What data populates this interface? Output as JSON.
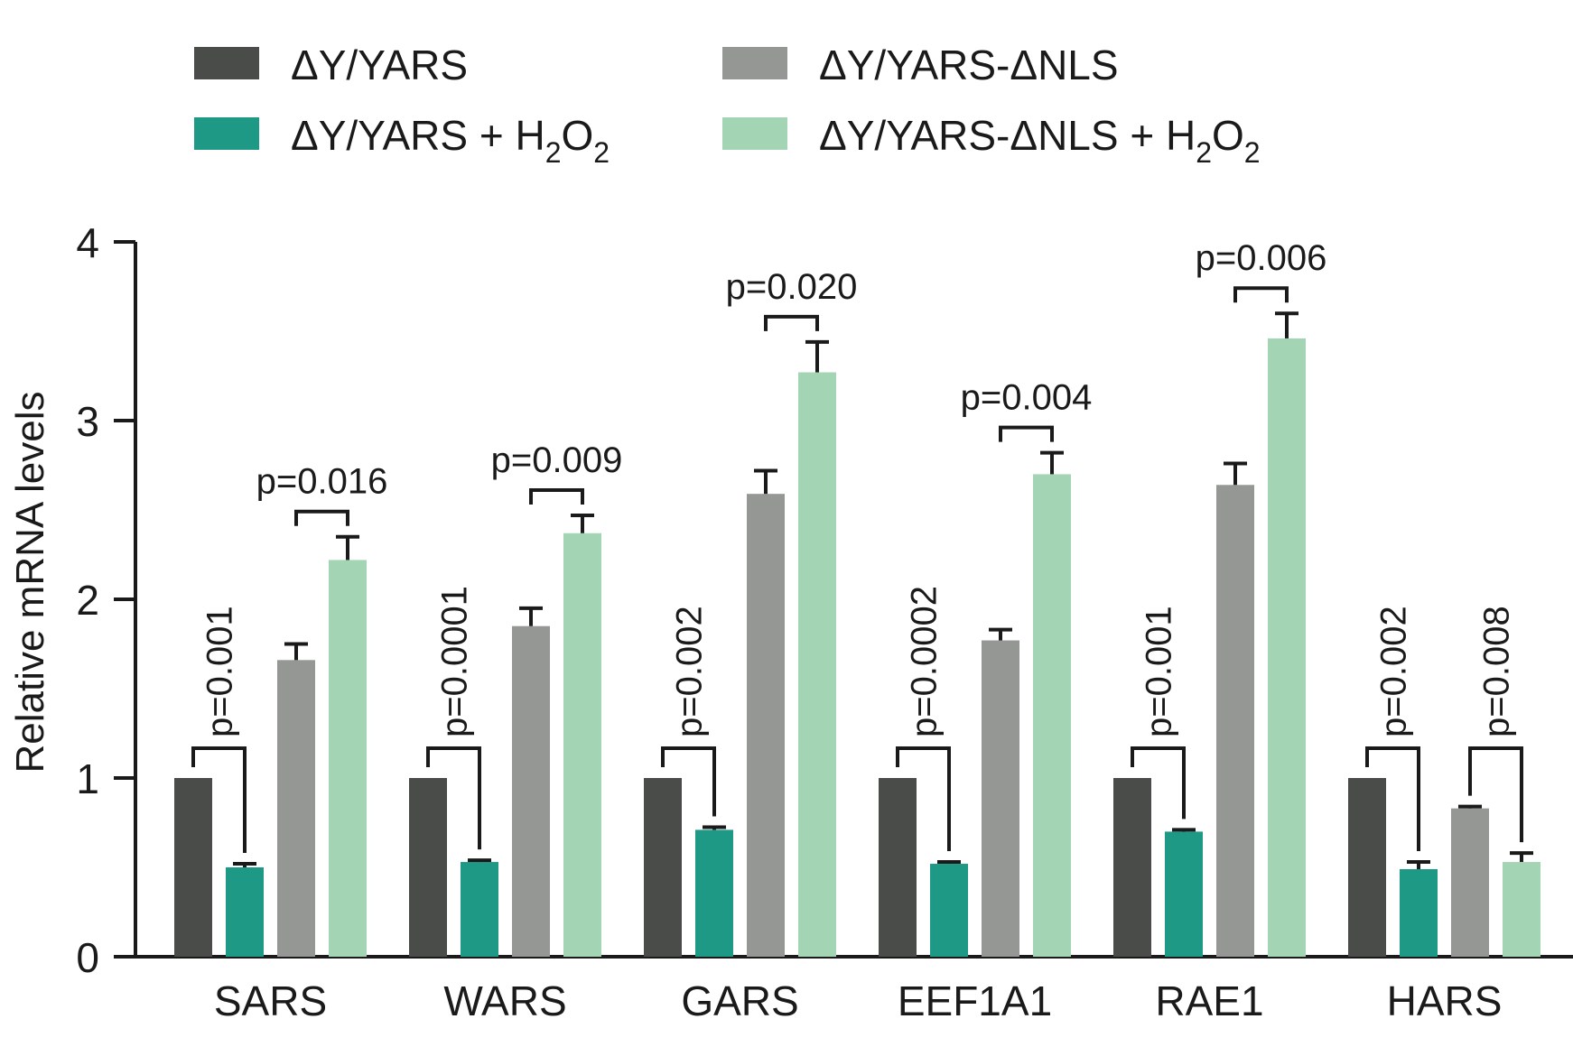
{
  "chart_data": {
    "type": "bar",
    "ylabel": "Relative mRNA levels",
    "xlabel": "",
    "ylim": [
      0,
      4
    ],
    "yticks": [
      "0",
      "1",
      "2",
      "3",
      "4"
    ],
    "categories": [
      "SARS",
      "WARS",
      "GARS",
      "EEF1A1",
      "RAE1",
      "HARS"
    ],
    "legend_position": "top",
    "series": [
      {
        "name": "ΔY/YARS",
        "color": "#4a4c4a",
        "values": [
          1.0,
          1.0,
          1.0,
          1.0,
          1.0,
          1.0
        ],
        "errors": [
          0,
          0,
          0,
          0,
          0,
          0
        ]
      },
      {
        "name": "ΔY/YARS + H2O2",
        "name_parts": {
          "base": "ΔY/YARS + H",
          "sub1": "2",
          "mid": "O",
          "sub2": "2"
        },
        "color": "#1d9985",
        "values": [
          0.5,
          0.53,
          0.71,
          0.52,
          0.7,
          0.49
        ],
        "errors": [
          0.02,
          0.01,
          0.015,
          0.01,
          0.01,
          0.04
        ]
      },
      {
        "name": "ΔY/YARS-ΔNLS",
        "color": "#949794",
        "values": [
          1.66,
          1.85,
          2.59,
          1.77,
          2.64,
          0.83
        ],
        "errors": [
          0.09,
          0.1,
          0.13,
          0.06,
          0.12,
          0.01
        ]
      },
      {
        "name": "ΔY/YARS-ΔNLS + H2O2",
        "name_parts": {
          "base": "ΔY/YARS-ΔNLS + H",
          "sub1": "2",
          "mid": "O",
          "sub2": "2"
        },
        "color": "#a3d4b4",
        "values": [
          2.22,
          2.37,
          3.27,
          2.7,
          3.46,
          0.53
        ],
        "errors": [
          0.13,
          0.1,
          0.17,
          0.12,
          0.14,
          0.05
        ]
      }
    ],
    "annotations": [
      {
        "text": "p=0.001",
        "category": 0,
        "from": 0,
        "to": 1,
        "orientation": "vertical"
      },
      {
        "text": "p=0.016",
        "category": 0,
        "from": 2,
        "to": 3,
        "orientation": "horizontal"
      },
      {
        "text": "p=0.0001",
        "category": 1,
        "from": 0,
        "to": 1,
        "orientation": "vertical"
      },
      {
        "text": "p=0.009",
        "category": 1,
        "from": 2,
        "to": 3,
        "orientation": "horizontal"
      },
      {
        "text": "p=0.002",
        "category": 2,
        "from": 0,
        "to": 1,
        "orientation": "vertical"
      },
      {
        "text": "p=0.020",
        "category": 2,
        "from": 2,
        "to": 3,
        "orientation": "horizontal"
      },
      {
        "text": "p=0.0002",
        "category": 3,
        "from": 0,
        "to": 1,
        "orientation": "vertical"
      },
      {
        "text": "p=0.004",
        "category": 3,
        "from": 2,
        "to": 3,
        "orientation": "horizontal"
      },
      {
        "text": "p=0.001",
        "category": 4,
        "from": 0,
        "to": 1,
        "orientation": "vertical"
      },
      {
        "text": "p=0.006",
        "category": 4,
        "from": 2,
        "to": 3,
        "orientation": "horizontal"
      },
      {
        "text": "p=0.002",
        "category": 5,
        "from": 0,
        "to": 1,
        "orientation": "vertical"
      },
      {
        "text": "p=0.008",
        "category": 5,
        "from": 2,
        "to": 3,
        "orientation": "vertical"
      }
    ]
  }
}
